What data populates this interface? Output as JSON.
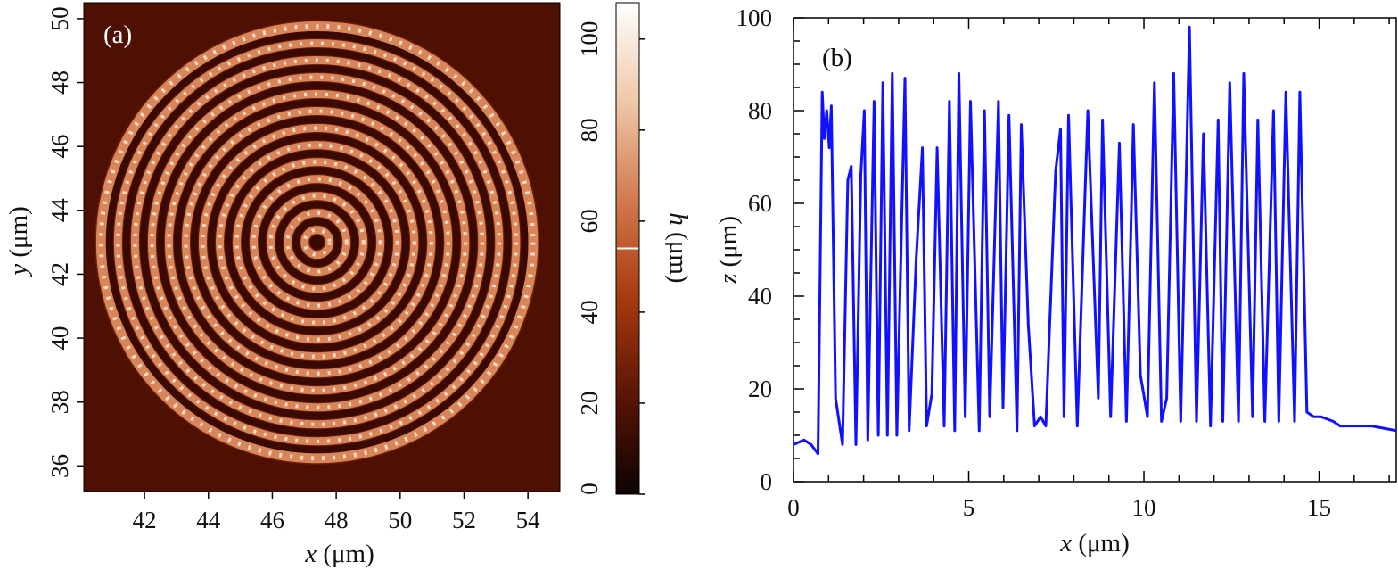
{
  "chart_data": [
    {
      "panel": "(a)",
      "type": "heatmap",
      "description_of_content": "concentric rings",
      "xlabel": {
        "var": "x",
        "unit": "(μm)"
      },
      "ylabel": {
        "var": "y",
        "unit": "(μm)"
      },
      "xticks": [
        42,
        44,
        46,
        48,
        50,
        52,
        54
      ],
      "yticks": [
        36,
        38,
        40,
        42,
        44,
        46,
        48,
        50
      ],
      "xlim": [
        40.1,
        55.0
      ],
      "ylim": [
        35.2,
        50.5
      ],
      "rings": {
        "center": [
          47.4,
          43.0
        ],
        "outer_radius": 6.9,
        "count": 13
      },
      "colorbar": {
        "label": {
          "var": "h",
          "unit": "(μm)"
        },
        "ticks": [
          0,
          20,
          40,
          60,
          80,
          100
        ],
        "range": [
          0,
          108
        ],
        "marker_value": 54,
        "colors": [
          "#0e0202",
          "#5a1505",
          "#a83a0e",
          "#d27a4e",
          "#efc8a8",
          "#ffffff"
        ]
      }
    },
    {
      "panel": "(b)",
      "type": "line",
      "xlabel": {
        "var": "x",
        "unit": "(μm)"
      },
      "ylabel": {
        "var": "z",
        "unit": "(μm)"
      },
      "xticks": [
        0,
        5,
        10,
        15
      ],
      "yticks": [
        0,
        20,
        40,
        60,
        80,
        100
      ],
      "xlim": [
        0,
        17.2
      ],
      "ylim": [
        0,
        100
      ],
      "line_color": "#1111ff",
      "series": [
        {
          "x": [
            0,
            0.3,
            0.5,
            0.7,
            0.82,
            0.88,
            0.95,
            1.02,
            1.08,
            1.2,
            1.4,
            1.55,
            1.65,
            1.78,
            1.92,
            2.02,
            2.12,
            2.3,
            2.42,
            2.55,
            2.68,
            2.82,
            2.95,
            3.18,
            3.3,
            3.5,
            3.68,
            3.8,
            3.95,
            4.1,
            4.3,
            4.45,
            4.6,
            4.72,
            4.9,
            5.05,
            5.3,
            5.45,
            5.6,
            5.85,
            5.98,
            6.15,
            6.38,
            6.5,
            6.7,
            6.88,
            7.05,
            7.2,
            7.48,
            7.62,
            7.72,
            7.85,
            8.1,
            8.4,
            8.7,
            8.82,
            9.05,
            9.3,
            9.5,
            9.7,
            9.9,
            10.1,
            10.3,
            10.5,
            10.65,
            10.85,
            11.05,
            11.3,
            11.5,
            11.7,
            11.9,
            12.12,
            12.25,
            12.45,
            12.7,
            12.85,
            13.1,
            13.25,
            13.45,
            13.7,
            13.85,
            14.05,
            14.3,
            14.45,
            14.65,
            14.85,
            15.05,
            15.4,
            15.6,
            16.0,
            16.5,
            17.2
          ],
          "y": [
            8,
            9,
            8,
            6,
            84,
            74,
            80,
            72,
            81,
            18,
            8,
            65,
            68,
            8,
            66,
            80,
            9,
            82,
            10,
            86,
            10,
            88,
            10,
            87,
            11,
            48,
            72,
            12,
            19,
            72,
            12,
            82,
            11,
            88,
            14,
            82,
            11,
            80,
            14,
            82,
            16,
            79,
            11,
            77,
            34,
            12,
            14,
            12,
            67,
            76,
            14,
            79,
            12,
            80,
            18,
            78,
            14,
            73,
            13,
            77,
            23,
            14,
            86,
            13,
            18,
            88,
            13,
            98,
            13,
            75,
            12,
            78,
            13,
            86,
            13,
            88,
            14,
            78,
            13,
            80,
            13,
            84,
            13,
            84,
            15,
            14,
            14,
            13,
            12,
            12,
            12,
            11
          ]
        }
      ]
    }
  ]
}
